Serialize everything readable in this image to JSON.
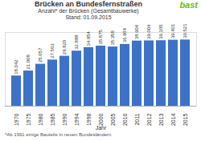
{
  "chart_data": {
    "type": "bar",
    "title": "Brücken an Bundesfernstraßen",
    "subtitle": [
      "Anzahl* der Brücken (Gesamtbauwerke)",
      "Stand: 01.09.2015"
    ],
    "caption": "*Ab 1991 einige Bauteile in neuen Bundesländern",
    "annotations": [
      {
        "text": "bast",
        "color": "#6abf00"
      }
    ],
    "xlabel": "Jahr",
    "categories": [
      "1970",
      "1975",
      "1980",
      "1985",
      "1990",
      "1994",
      "1998",
      "2000",
      "2005",
      "2010",
      "2011",
      "2012",
      "2013",
      "2014",
      "2015"
    ],
    "values": [
      18042,
      21008,
      25057,
      27563,
      29820,
      32888,
      34954,
      35875,
      35358,
      36904,
      38904,
      39004,
      39105,
      39401,
      39521
    ],
    "value_labels": [
      "18.042",
      "21.008",
      "25.057",
      "27.563",
      "29.820",
      "32.888",
      "34.954",
      "35.875",
      "35.358",
      "36.904",
      "38.904",
      "39.004",
      "39.105",
      "39.401",
      "39.521"
    ],
    "color": "#3d72c8",
    "ylim": [
      0,
      44000
    ],
    "yticks": [],
    "grid": false,
    "data_labels": true,
    "tick_labels": "x"
  }
}
